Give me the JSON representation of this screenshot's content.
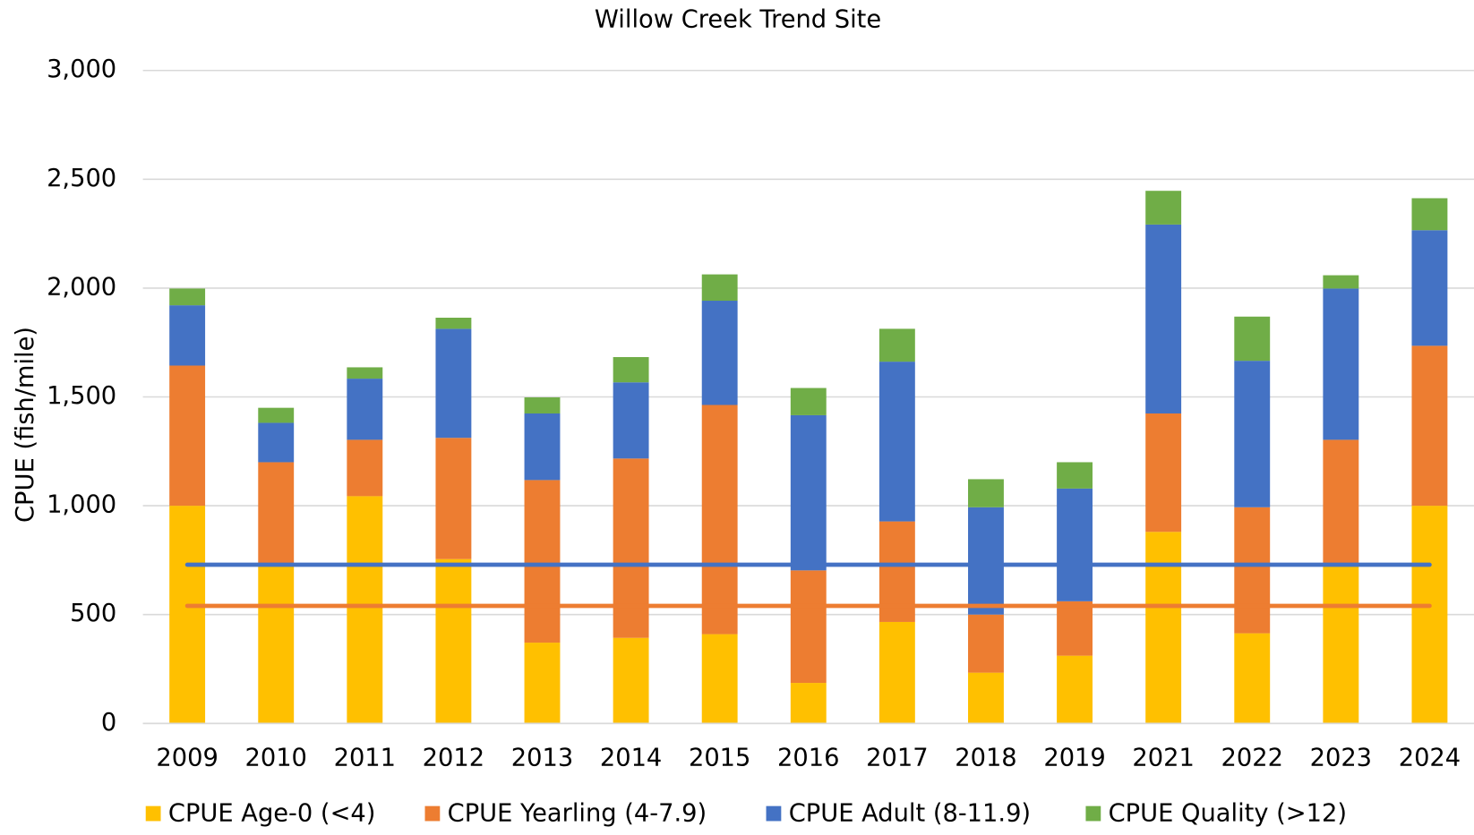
{
  "chart_data": {
    "type": "stacked_bar",
    "title": "Willow Creek Trend Site",
    "y_label": "CPUE (fish/mile)",
    "categories": [
      "2009",
      "2010",
      "2011",
      "2012",
      "2013",
      "2014",
      "2015",
      "2016",
      "2017",
      "2018",
      "2019",
      "2021",
      "2022",
      "2023",
      "2024"
    ],
    "series": [
      {
        "name": "CPUE Age-0 (<4)",
        "color": "#ffc000",
        "values": [
          1000,
          730,
          1044,
          755,
          371,
          393,
          410,
          186,
          466,
          233,
          311,
          880,
          414,
          730,
          1000
        ]
      },
      {
        "name": "CPUE Yearling (4-7.9)",
        "color": "#ed7d31",
        "values": [
          644,
          470,
          259,
          557,
          747,
          824,
          1053,
          517,
          462,
          267,
          250,
          544,
          579,
          573,
          735
        ]
      },
      {
        "name": "CPUE Adult (8-11.9)",
        "color": "#4472c4",
        "values": [
          277,
          181,
          281,
          501,
          306,
          350,
          479,
          713,
          734,
          493,
          518,
          868,
          673,
          695,
          531
        ]
      },
      {
        "name": "CPUE Quality (>12)",
        "color": "#70ad47",
        "values": [
          77,
          69,
          52,
          51,
          74,
          116,
          121,
          125,
          151,
          129,
          121,
          155,
          203,
          61,
          147
        ]
      }
    ],
    "lines": [
      {
        "color": "#4472c4",
        "values": [
          729,
          729,
          729,
          729,
          729,
          729,
          729,
          729,
          729,
          729,
          729,
          729,
          729,
          729,
          729
        ]
      },
      {
        "color": "#ed7d31",
        "values": [
          540,
          540,
          540,
          540,
          540,
          540,
          540,
          540,
          540,
          540,
          540,
          540,
          540,
          540,
          540
        ]
      }
    ],
    "ylim": [
      0,
      3000
    ],
    "yticks": [
      0,
      500,
      {
        "value": 1000,
        "label": "1,000"
      },
      {
        "value": 1500,
        "label": "1,500"
      },
      {
        "value": 2000,
        "label": "2,000"
      },
      {
        "value": 2500,
        "label": "2,500"
      },
      {
        "value": 3000,
        "label": "3,000"
      }
    ],
    "grid": true,
    "legend": "bottom"
  }
}
